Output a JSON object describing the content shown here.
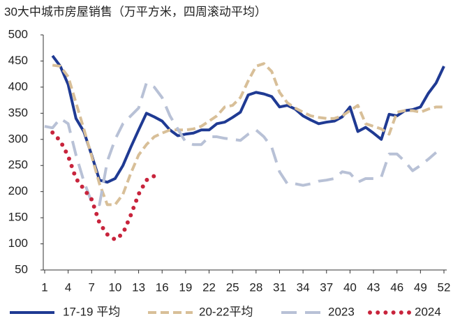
{
  "chart_data": {
    "type": "line",
    "title": "30大中城市房屋销售（万平方米，四周滚动平均）",
    "x": [
      1,
      2,
      3,
      4,
      5,
      6,
      7,
      8,
      9,
      10,
      11,
      12,
      13,
      14,
      15,
      16,
      17,
      18,
      19,
      20,
      21,
      22,
      23,
      24,
      25,
      26,
      27,
      28,
      29,
      30,
      31,
      32,
      33,
      34,
      35,
      36,
      37,
      38,
      39,
      40,
      41,
      42,
      43,
      44,
      45,
      46,
      47,
      48,
      49,
      50,
      51,
      52
    ],
    "xlim": [
      1,
      52
    ],
    "xticks": [
      1,
      4,
      7,
      10,
      13,
      16,
      19,
      22,
      25,
      28,
      31,
      34,
      37,
      40,
      43,
      46,
      49,
      52
    ],
    "ylim": [
      50,
      500
    ],
    "yticks": [
      50,
      100,
      150,
      200,
      250,
      300,
      350,
      400,
      450,
      500
    ],
    "legend": "bottom",
    "series": [
      {
        "name": "17-19 平均",
        "color": "#1f3a93",
        "dash": "solid",
        "values": [
          null,
          460,
          440,
          405,
          340,
          315,
          270,
          222,
          218,
          225,
          250,
          285,
          318,
          350,
          343,
          335,
          318,
          307,
          310,
          312,
          318,
          318,
          330,
          333,
          342,
          352,
          385,
          390,
          387,
          382,
          362,
          365,
          358,
          345,
          337,
          330,
          333,
          335,
          343,
          362,
          315,
          323,
          312,
          300,
          348,
          345,
          355,
          357,
          362,
          388,
          408,
          440
        ]
      },
      {
        "name": "20-22平均",
        "color": "#d8bf98",
        "dash": "dashed",
        "values": [
          null,
          442,
          440,
          420,
          370,
          320,
          268,
          215,
          175,
          175,
          195,
          235,
          270,
          290,
          305,
          312,
          318,
          318,
          318,
          320,
          325,
          335,
          345,
          362,
          365,
          380,
          412,
          440,
          445,
          430,
          390,
          370,
          360,
          352,
          345,
          342,
          340,
          340,
          345,
          355,
          365,
          330,
          325,
          320,
          310,
          352,
          355,
          355,
          352,
          358,
          362,
          362
        ]
      },
      {
        "name": "2023",
        "color": "#b8c1d6",
        "dash": "longdash",
        "values": [
          325,
          322,
          340,
          330,
          270,
          220,
          180,
          175,
          258,
          300,
          330,
          345,
          360,
          408,
          400,
          380,
          345,
          320,
          295,
          290,
          290,
          305,
          305,
          302,
          300,
          298,
          310,
          318,
          305,
          285,
          238,
          215,
          215,
          212,
          215,
          220,
          222,
          225,
          238,
          235,
          218,
          225,
          225,
          228,
          272,
          272,
          258,
          240,
          250,
          262,
          275,
          null
        ]
      },
      {
        "name": "2024",
        "color": "#c8243c",
        "dash": "dotted",
        "values": [
          null,
          313,
          297,
          268,
          225,
          205,
          185,
          140,
          118,
          108,
          120,
          155,
          195,
          222,
          230,
          null,
          null,
          null,
          null,
          null,
          null,
          null,
          null,
          null,
          null,
          null,
          null,
          null,
          null,
          null,
          null,
          null,
          null,
          null,
          null,
          null,
          null,
          null,
          null,
          null,
          null,
          null,
          null,
          null,
          null,
          null,
          null,
          null,
          null,
          null,
          null,
          null
        ]
      }
    ]
  }
}
